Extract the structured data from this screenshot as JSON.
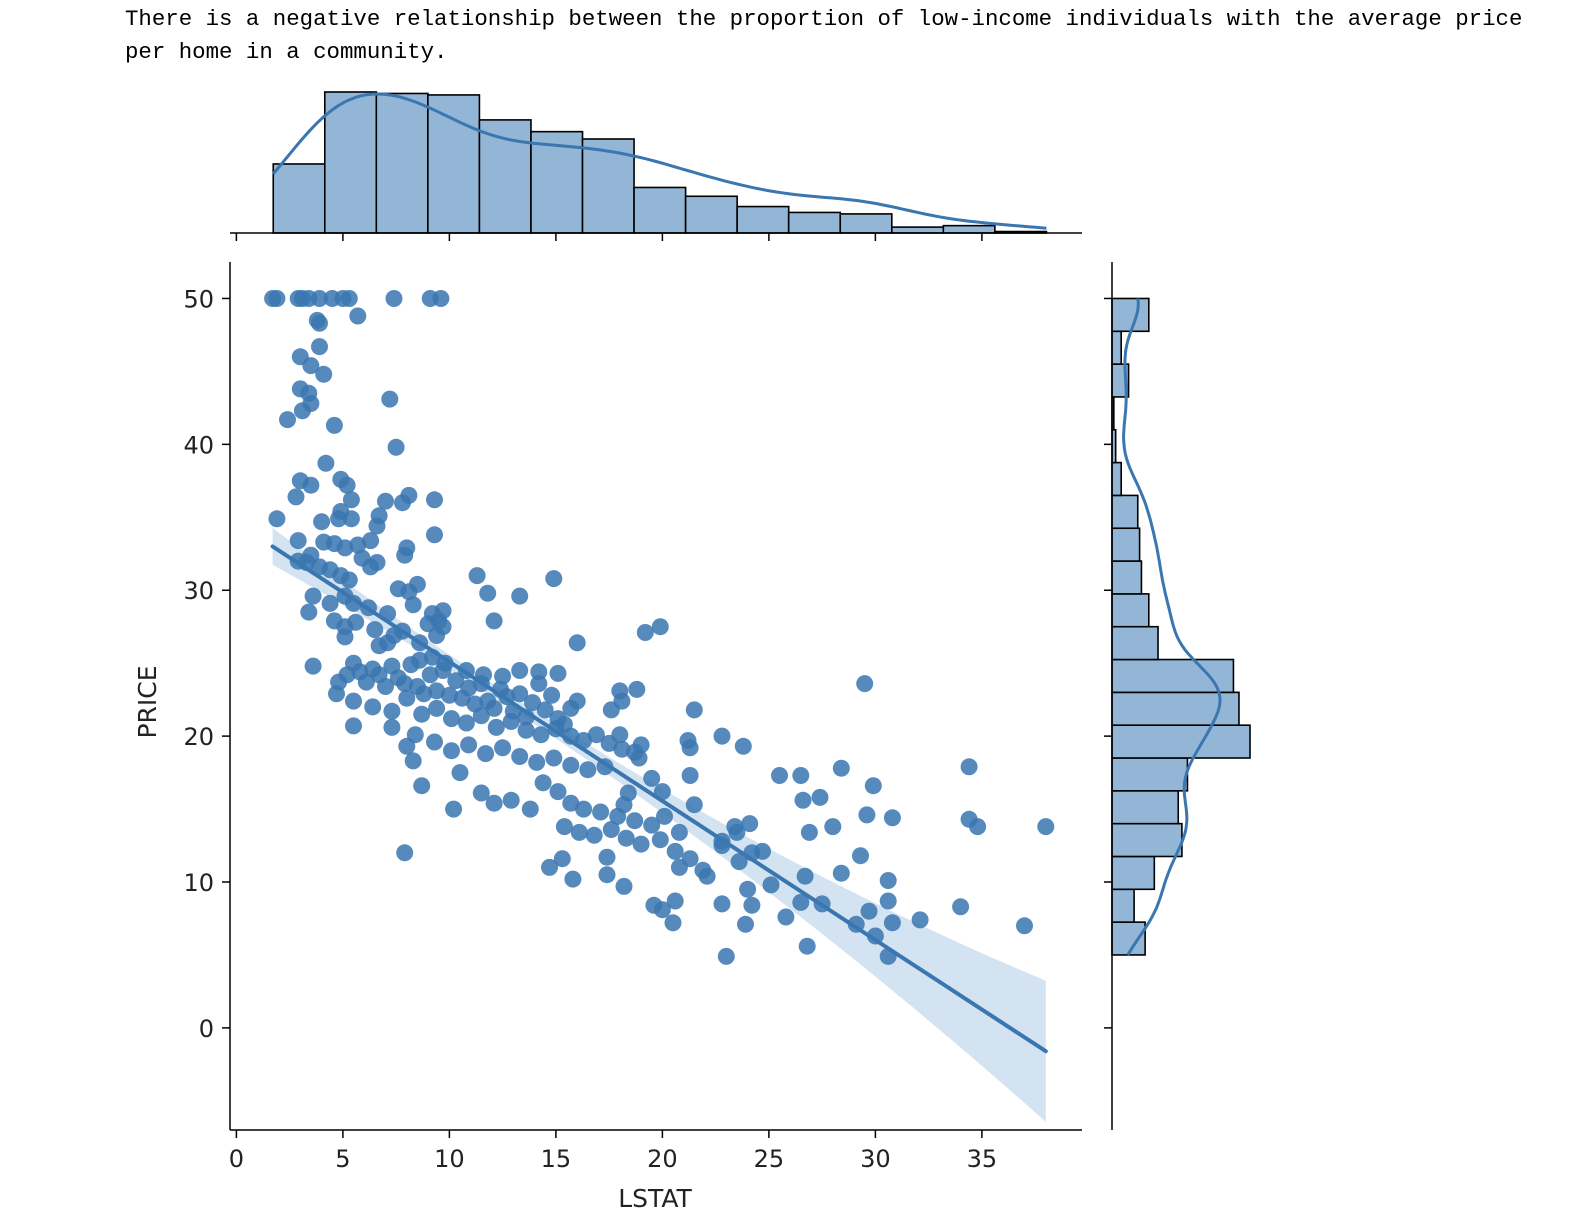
{
  "caption": "There is a negative relationship between the proportion of low-income individuals with the average price per home in a community.",
  "chart_data": {
    "type": "scatter",
    "subtype": "jointplot with regression line and marginal histograms",
    "title": "",
    "xlabel": "LSTAT",
    "ylabel": "PRICE",
    "xlim": [
      -0.3,
      39.7
    ],
    "ylim": [
      -7,
      52.5
    ],
    "x_ticks": [
      0,
      5,
      10,
      15,
      20,
      25,
      30,
      35
    ],
    "y_ticks": [
      0,
      10,
      20,
      30,
      40,
      50
    ],
    "grid": false,
    "colors": {
      "points": "#3a76b0",
      "regression_line": "#3a76b0",
      "confidence_band": "#c6d9ec",
      "hist_fill": "#94b6d6",
      "hist_edge": "#000000",
      "kde": "#3a76b0"
    },
    "regression": {
      "x_start": 1.7,
      "y_start": 33.0,
      "x_end": 38.0,
      "y_end": -1.6
    },
    "points": [
      [
        1.7,
        50
      ],
      [
        1.9,
        50
      ],
      [
        2.9,
        50
      ],
      [
        3.1,
        50
      ],
      [
        3.4,
        50
      ],
      [
        3.9,
        50
      ],
      [
        4.5,
        50
      ],
      [
        5.0,
        50
      ],
      [
        5.3,
        50
      ],
      [
        7.4,
        50
      ],
      [
        9.1,
        50
      ],
      [
        9.6,
        50
      ],
      [
        3.8,
        48.5
      ],
      [
        3.9,
        48.3
      ],
      [
        5.7,
        48.8
      ],
      [
        3.9,
        46.7
      ],
      [
        3.0,
        46.0
      ],
      [
        3.5,
        45.4
      ],
      [
        4.1,
        44.8
      ],
      [
        3.0,
        43.8
      ],
      [
        3.4,
        43.5
      ],
      [
        3.1,
        42.3
      ],
      [
        3.5,
        42.8
      ],
      [
        2.4,
        41.7
      ],
      [
        4.6,
        41.3
      ],
      [
        7.2,
        43.1
      ],
      [
        7.5,
        39.8
      ],
      [
        4.2,
        38.7
      ],
      [
        4.9,
        37.6
      ],
      [
        5.2,
        37.2
      ],
      [
        3.0,
        37.5
      ],
      [
        3.5,
        37.2
      ],
      [
        5.4,
        36.2
      ],
      [
        7.0,
        36.1
      ],
      [
        8.1,
        36.5
      ],
      [
        7.8,
        36.0
      ],
      [
        9.3,
        36.2
      ],
      [
        2.8,
        36.4
      ],
      [
        6.7,
        35.1
      ],
      [
        4.9,
        35.4
      ],
      [
        5.4,
        34.9
      ],
      [
        4.0,
        34.7
      ],
      [
        1.9,
        34.9
      ],
      [
        4.8,
        34.9
      ],
      [
        9.3,
        33.8
      ],
      [
        6.6,
        34.4
      ],
      [
        2.9,
        33.4
      ],
      [
        4.1,
        33.3
      ],
      [
        4.6,
        33.2
      ],
      [
        5.1,
        32.9
      ],
      [
        5.7,
        33.1
      ],
      [
        6.3,
        33.4
      ],
      [
        8.0,
        32.9
      ],
      [
        3.5,
        32.4
      ],
      [
        5.9,
        32.2
      ],
      [
        6.6,
        31.9
      ],
      [
        7.9,
        32.4
      ],
      [
        2.9,
        32.0
      ],
      [
        3.3,
        31.9
      ],
      [
        3.9,
        31.6
      ],
      [
        4.4,
        31.4
      ],
      [
        4.9,
        31.0
      ],
      [
        5.3,
        30.7
      ],
      [
        6.3,
        31.6
      ],
      [
        7.6,
        30.1
      ],
      [
        8.5,
        30.4
      ],
      [
        8.1,
        29.9
      ],
      [
        11.3,
        31.0
      ],
      [
        11.8,
        29.8
      ],
      [
        13.3,
        29.6
      ],
      [
        14.9,
        30.8
      ],
      [
        3.6,
        29.6
      ],
      [
        4.4,
        29.1
      ],
      [
        5.1,
        29.6
      ],
      [
        5.5,
        29.1
      ],
      [
        6.2,
        28.8
      ],
      [
        7.1,
        28.4
      ],
      [
        8.3,
        29.0
      ],
      [
        9.2,
        28.4
      ],
      [
        9.5,
        27.9
      ],
      [
        9.7,
        28.6
      ],
      [
        3.4,
        28.5
      ],
      [
        4.6,
        27.9
      ],
      [
        5.1,
        27.5
      ],
      [
        5.6,
        27.8
      ],
      [
        6.5,
        27.3
      ],
      [
        7.4,
        26.9
      ],
      [
        7.8,
        27.2
      ],
      [
        9.0,
        27.7
      ],
      [
        9.7,
        27.5
      ],
      [
        12.1,
        27.9
      ],
      [
        5.1,
        26.8
      ],
      [
        6.7,
        26.2
      ],
      [
        7.1,
        26.4
      ],
      [
        8.6,
        26.4
      ],
      [
        9.4,
        26.9
      ],
      [
        16.0,
        26.4
      ],
      [
        19.2,
        27.1
      ],
      [
        19.9,
        27.5
      ],
      [
        3.6,
        24.8
      ],
      [
        4.8,
        23.7
      ],
      [
        5.2,
        24.2
      ],
      [
        5.5,
        25.0
      ],
      [
        5.8,
        24.4
      ],
      [
        6.1,
        23.7
      ],
      [
        6.4,
        24.6
      ],
      [
        6.7,
        24.2
      ],
      [
        7.0,
        23.4
      ],
      [
        7.3,
        24.8
      ],
      [
        7.6,
        24.0
      ],
      [
        7.9,
        23.6
      ],
      [
        8.2,
        24.9
      ],
      [
        8.5,
        23.4
      ],
      [
        8.8,
        22.9
      ],
      [
        9.1,
        24.2
      ],
      [
        9.4,
        23.1
      ],
      [
        9.7,
        24.5
      ],
      [
        10.0,
        22.8
      ],
      [
        10.3,
        23.8
      ],
      [
        10.6,
        22.6
      ],
      [
        10.9,
        23.3
      ],
      [
        11.2,
        22.2
      ],
      [
        11.5,
        23.6
      ],
      [
        11.8,
        22.4
      ],
      [
        12.1,
        21.9
      ],
      [
        12.4,
        23.2
      ],
      [
        12.7,
        22.7
      ],
      [
        13.0,
        21.7
      ],
      [
        13.3,
        22.9
      ],
      [
        13.6,
        21.3
      ],
      [
        13.9,
        22.3
      ],
      [
        14.2,
        23.6
      ],
      [
        14.5,
        21.8
      ],
      [
        14.8,
        22.8
      ],
      [
        15.1,
        21.2
      ],
      [
        15.4,
        20.8
      ],
      [
        15.7,
        21.9
      ],
      [
        16.0,
        22.4
      ],
      [
        4.7,
        22.9
      ],
      [
        5.5,
        22.4
      ],
      [
        6.4,
        22.0
      ],
      [
        7.3,
        21.7
      ],
      [
        8.0,
        22.6
      ],
      [
        8.7,
        21.5
      ],
      [
        9.4,
        21.9
      ],
      [
        10.1,
        21.2
      ],
      [
        10.8,
        20.9
      ],
      [
        11.5,
        21.4
      ],
      [
        12.2,
        20.6
      ],
      [
        12.9,
        21.0
      ],
      [
        13.6,
        20.4
      ],
      [
        14.3,
        20.1
      ],
      [
        15.0,
        20.5
      ],
      [
        15.7,
        20.0
      ],
      [
        16.3,
        19.7
      ],
      [
        16.9,
        20.1
      ],
      [
        17.5,
        19.5
      ],
      [
        18.1,
        19.1
      ],
      [
        18.7,
        18.9
      ],
      [
        5.5,
        20.7
      ],
      [
        7.3,
        20.6
      ],
      [
        8.4,
        20.1
      ],
      [
        9.3,
        19.6
      ],
      [
        10.1,
        19.0
      ],
      [
        10.9,
        19.4
      ],
      [
        11.7,
        18.8
      ],
      [
        12.5,
        19.2
      ],
      [
        13.3,
        18.6
      ],
      [
        14.1,
        18.2
      ],
      [
        14.9,
        18.5
      ],
      [
        15.7,
        18.0
      ],
      [
        16.5,
        17.7
      ],
      [
        17.3,
        17.9
      ],
      [
        8.0,
        19.3
      ],
      [
        8.3,
        18.3
      ],
      [
        8.7,
        16.6
      ],
      [
        10.2,
        15.0
      ],
      [
        10.5,
        17.5
      ],
      [
        11.5,
        16.1
      ],
      [
        12.1,
        15.4
      ],
      [
        12.9,
        15.6
      ],
      [
        13.8,
        15.0
      ],
      [
        14.4,
        16.8
      ],
      [
        15.1,
        16.2
      ],
      [
        15.7,
        15.4
      ],
      [
        16.3,
        15.0
      ],
      [
        17.1,
        14.8
      ],
      [
        17.9,
        14.5
      ],
      [
        18.7,
        14.2
      ],
      [
        19.5,
        13.9
      ],
      [
        15.4,
        13.8
      ],
      [
        16.1,
        13.4
      ],
      [
        16.8,
        13.2
      ],
      [
        17.6,
        13.6
      ],
      [
        18.3,
        13.0
      ],
      [
        19.0,
        12.6
      ],
      [
        19.9,
        12.9
      ],
      [
        20.6,
        12.1
      ],
      [
        21.3,
        11.6
      ],
      [
        7.9,
        12.0
      ],
      [
        14.7,
        11.0
      ],
      [
        15.3,
        11.6
      ],
      [
        15.8,
        10.2
      ],
      [
        17.4,
        11.7
      ],
      [
        17.4,
        10.5
      ],
      [
        18.2,
        9.7
      ],
      [
        20.0,
        8.1
      ],
      [
        20.5,
        7.2
      ],
      [
        20.6,
        8.7
      ],
      [
        23.0,
        4.9
      ],
      [
        22.8,
        8.5
      ],
      [
        23.9,
        7.1
      ],
      [
        24.2,
        8.4
      ],
      [
        24.0,
        9.5
      ],
      [
        23.6,
        11.4
      ],
      [
        24.2,
        12.0
      ],
      [
        22.8,
        12.8
      ],
      [
        23.5,
        13.4
      ],
      [
        24.7,
        12.1
      ],
      [
        25.1,
        9.8
      ],
      [
        25.8,
        7.6
      ],
      [
        26.5,
        8.6
      ],
      [
        26.7,
        10.4
      ],
      [
        26.8,
        5.6
      ],
      [
        27.5,
        8.5
      ],
      [
        28.4,
        10.6
      ],
      [
        29.1,
        7.1
      ],
      [
        29.7,
        8.0
      ],
      [
        30.0,
        6.3
      ],
      [
        30.6,
        4.9
      ],
      [
        30.6,
        8.7
      ],
      [
        30.6,
        10.1
      ],
      [
        30.8,
        7.2
      ],
      [
        32.1,
        7.4
      ],
      [
        34.0,
        8.3
      ],
      [
        37.0,
        7.0
      ],
      [
        38.0,
        13.8
      ],
      [
        34.8,
        13.8
      ],
      [
        34.4,
        14.3
      ],
      [
        34.4,
        17.9
      ],
      [
        30.8,
        14.4
      ],
      [
        29.9,
        16.6
      ],
      [
        29.6,
        14.6
      ],
      [
        29.3,
        11.8
      ],
      [
        28.4,
        17.8
      ],
      [
        28.0,
        13.8
      ],
      [
        27.4,
        15.8
      ],
      [
        26.9,
        13.4
      ],
      [
        26.6,
        15.6
      ],
      [
        26.5,
        17.3
      ],
      [
        25.5,
        17.3
      ],
      [
        24.1,
        14.0
      ],
      [
        23.4,
        13.8
      ],
      [
        22.1,
        10.4
      ],
      [
        21.5,
        15.3
      ],
      [
        21.3,
        17.3
      ],
      [
        21.2,
        19.7
      ],
      [
        21.5,
        21.8
      ],
      [
        21.3,
        19.2
      ],
      [
        20.8,
        13.4
      ],
      [
        20.1,
        14.5
      ],
      [
        20.0,
        16.2
      ],
      [
        19.5,
        17.1
      ],
      [
        18.9,
        18.5
      ],
      [
        18.4,
        16.1
      ],
      [
        18.0,
        20.1
      ],
      [
        17.6,
        21.8
      ],
      [
        18.1,
        22.4
      ],
      [
        18.0,
        23.1
      ],
      [
        18.8,
        23.2
      ],
      [
        19.0,
        19.4
      ],
      [
        22.8,
        20.0
      ],
      [
        23.8,
        19.3
      ],
      [
        15.1,
        24.3
      ],
      [
        14.2,
        24.4
      ],
      [
        13.3,
        24.5
      ],
      [
        12.5,
        24.1
      ],
      [
        11.6,
        24.2
      ],
      [
        10.8,
        24.5
      ],
      [
        9.8,
        25.0
      ],
      [
        9.2,
        25.4
      ],
      [
        8.6,
        25.2
      ],
      [
        29.5,
        23.6
      ],
      [
        20.8,
        11.0
      ],
      [
        21.9,
        10.8
      ],
      [
        22.8,
        12.5
      ],
      [
        19.6,
        8.4
      ],
      [
        18.2,
        15.3
      ]
    ],
    "top_histogram": {
      "axis": "LSTAT",
      "bin_edges": [
        1.73,
        4.15,
        6.57,
        8.99,
        11.41,
        13.83,
        16.25,
        18.67,
        21.09,
        23.51,
        25.93,
        28.35,
        30.77,
        33.19,
        35.61,
        38.03
      ],
      "counts": [
        47,
        96,
        95,
        94,
        77,
        69,
        64,
        31,
        25,
        18,
        14,
        13,
        4,
        5,
        1
      ]
    },
    "right_histogram": {
      "axis": "PRICE",
      "bin_edges": [
        5.0,
        7.25,
        9.5,
        11.75,
        14.0,
        16.25,
        18.5,
        20.75,
        23.0,
        25.25,
        27.5,
        29.75,
        32.0,
        34.25,
        36.5,
        38.75,
        41.0,
        43.25,
        45.5,
        47.75,
        50.0
      ],
      "counts": [
        18,
        12,
        23,
        38,
        36,
        41,
        75,
        69,
        66,
        25,
        20,
        16,
        15,
        14,
        5,
        2,
        1,
        9,
        5,
        20
      ]
    }
  }
}
